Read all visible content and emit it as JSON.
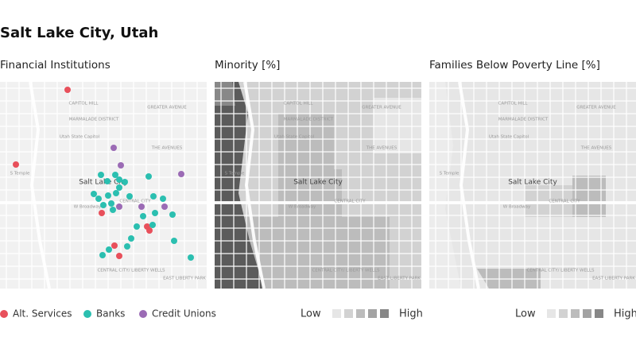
{
  "title": "Salt Lake City, Utah",
  "panels": [
    {
      "title": "Financial Institutions"
    },
    {
      "title": "Minority [%]"
    },
    {
      "title": "Families Below Poverty Line [%]"
    }
  ],
  "legend": {
    "items": [
      {
        "label": "Alt. Services",
        "color": "#e8505b"
      },
      {
        "label": "Banks",
        "color": "#2bbfb0"
      },
      {
        "label": "Credit Unions",
        "color": "#9b6bb5"
      }
    ]
  },
  "scale": {
    "low": "Low",
    "high": "High",
    "colors": [
      "#e6e6e6",
      "#d2d2d2",
      "#bcbcbc",
      "#a3a3a3",
      "#878787"
    ]
  },
  "map_labels": [
    "CAPITOL HILL",
    "MARMALADE DISTRICT",
    "GREATER AVENUE",
    "THE AVENUES",
    "Utah State Capitol",
    "Salt Lake City",
    "CENTRAL CITY",
    "W Broadway",
    "S Temple",
    "CENTRAL CITY/ LIBERTY WELLS",
    "EAST LIBERTY PARK"
  ]
}
